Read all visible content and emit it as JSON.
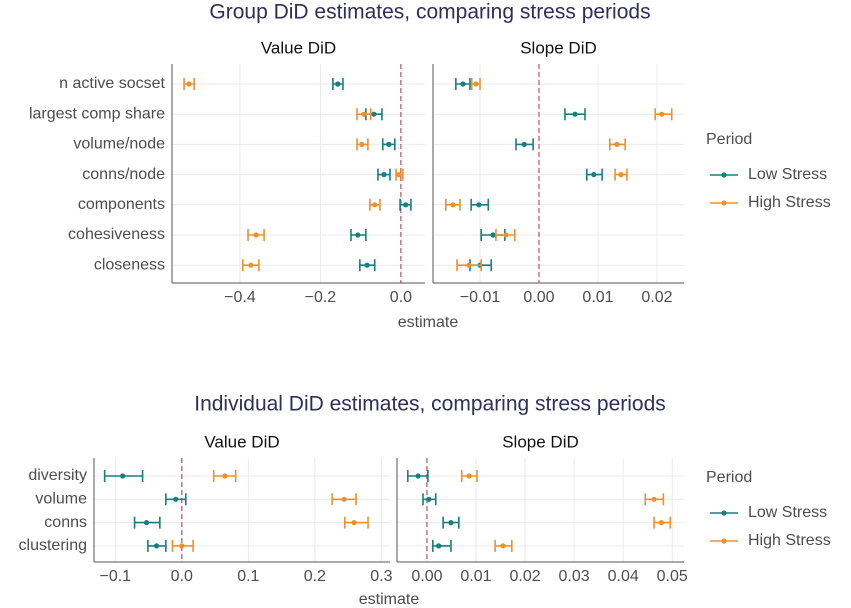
{
  "chart_data": [
    {
      "type": "errorbar",
      "title": "Group DiD estimates, comparing stress periods",
      "x_label": "estimate",
      "legend_title": "Period",
      "categories": [
        "n active socset",
        "largest comp share",
        "volume/node",
        "conns/node",
        "components",
        "cohesiveness",
        "closeness"
      ],
      "panels": [
        {
          "title": "Value DiD",
          "xlim": [
            -0.569,
            0.06
          ],
          "reference_x": 0,
          "xticks": [
            {
              "value": -0.4,
              "label": "−0.4"
            },
            {
              "value": -0.2,
              "label": "−0.2"
            },
            {
              "value": 0,
              "label": "0.0"
            }
          ],
          "series": [
            {
              "name": "Low Stress",
              "color": "#167f80",
              "values": [
                -0.157,
                -0.067,
                -0.03,
                -0.042,
                0.012,
                -0.107,
                -0.084
              ],
              "lower": [
                -0.169,
                -0.087,
                -0.045,
                -0.057,
                -0.002,
                -0.124,
                -0.102
              ],
              "upper": [
                -0.144,
                -0.047,
                -0.015,
                -0.027,
                0.025,
                -0.087,
                -0.065
              ]
            },
            {
              "name": "High Stress",
              "color": "#f0902c",
              "values": [
                -0.527,
                -0.092,
                -0.097,
                -0.005,
                -0.065,
                -0.36,
                -0.373
              ],
              "lower": [
                -0.539,
                -0.109,
                -0.109,
                -0.012,
                -0.077,
                -0.38,
                -0.393
              ],
              "upper": [
                -0.514,
                -0.075,
                -0.082,
                0.005,
                -0.052,
                -0.34,
                -0.353
              ]
            }
          ]
        },
        {
          "title": "Slope DiD",
          "xlim": [
            -0.01797,
            0.02458
          ],
          "reference_x": 0,
          "xticks": [
            {
              "value": -0.01,
              "label": "−0.01"
            },
            {
              "value": 0,
              "label": "0.00"
            },
            {
              "value": 0.01,
              "label": "0.01"
            },
            {
              "value": 0.02,
              "label": "0.02"
            }
          ],
          "series": [
            {
              "name": "Low Stress",
              "color": "#167f80",
              "values": [
                -0.0129,
                0.0061,
                -0.0025,
                0.0093,
                -0.0102,
                -0.0078,
                -0.01
              ],
              "lower": [
                -0.0141,
                0.0044,
                -0.0039,
                0.0081,
                -0.0115,
                -0.0098,
                -0.0117
              ],
              "upper": [
                -0.0117,
                0.0078,
                -0.001,
                0.0107,
                -0.0086,
                -0.0058,
                -0.0081
              ]
            },
            {
              "name": "High Stress",
              "color": "#f0902c",
              "values": [
                -0.0107,
                0.0208,
                0.0132,
                0.0139,
                -0.0146,
                -0.0056,
                -0.0119
              ],
              "lower": [
                -0.0114,
                0.0197,
                0.012,
                0.0129,
                -0.0158,
                -0.0073,
                -0.0139
              ],
              "upper": [
                -0.01,
                0.0225,
                0.0146,
                0.0149,
                -0.0134,
                -0.0041,
                -0.0098
              ]
            }
          ]
        }
      ]
    },
    {
      "type": "errorbar",
      "title": "Individual DiD estimates, comparing stress periods",
      "x_label": "estimate",
      "legend_title": "Period",
      "categories": [
        "diversity",
        "volume",
        "conns",
        "clustering"
      ],
      "panels": [
        {
          "title": "Value DiD",
          "xlim": [
            -0.132,
            0.313
          ],
          "reference_x": 0,
          "xticks": [
            {
              "value": -0.1,
              "label": "−0.1"
            },
            {
              "value": 0,
              "label": "0.0"
            },
            0.1,
            0.2,
            0.3
          ],
          "series": [
            {
              "name": "Low Stress",
              "color": "#167f80",
              "values": [
                -0.089,
                -0.009,
                -0.053,
                -0.038
              ],
              "lower": [
                -0.116,
                -0.024,
                -0.071,
                -0.051
              ],
              "upper": [
                -0.059,
                0.006,
                -0.033,
                -0.024
              ]
            },
            {
              "name": "High Stress",
              "color": "#f0902c",
              "values": [
                0.065,
                0.244,
                0.259,
                0.0
              ],
              "lower": [
                0.048,
                0.226,
                0.245,
                -0.014
              ],
              "upper": [
                0.081,
                0.262,
                0.28,
                0.017
              ]
            }
          ]
        },
        {
          "title": "Slope DiD",
          "xlim": [
            -0.0061,
            0.0524
          ],
          "reference_x": 0,
          "xticks": [
            {
              "value": 0,
              "label": "0.00"
            },
            0.01,
            0.02,
            0.03,
            0.04,
            0.05
          ],
          "series": [
            {
              "name": "Low Stress",
              "color": "#167f80",
              "values": [
                -0.0018,
                0.0004,
                0.0049,
                0.0024
              ],
              "lower": [
                -0.0039,
                -0.0008,
                0.0033,
                0.0012
              ],
              "upper": [
                0.0002,
                0.0018,
                0.0065,
                0.0049
              ]
            },
            {
              "name": "High Stress",
              "color": "#f0902c",
              "values": [
                0.0086,
                0.0463,
                0.0478,
                0.0155
              ],
              "lower": [
                0.0071,
                0.0445,
                0.0463,
                0.0139
              ],
              "upper": [
                0.0102,
                0.0482,
                0.0496,
                0.0173
              ]
            }
          ]
        }
      ]
    }
  ]
}
